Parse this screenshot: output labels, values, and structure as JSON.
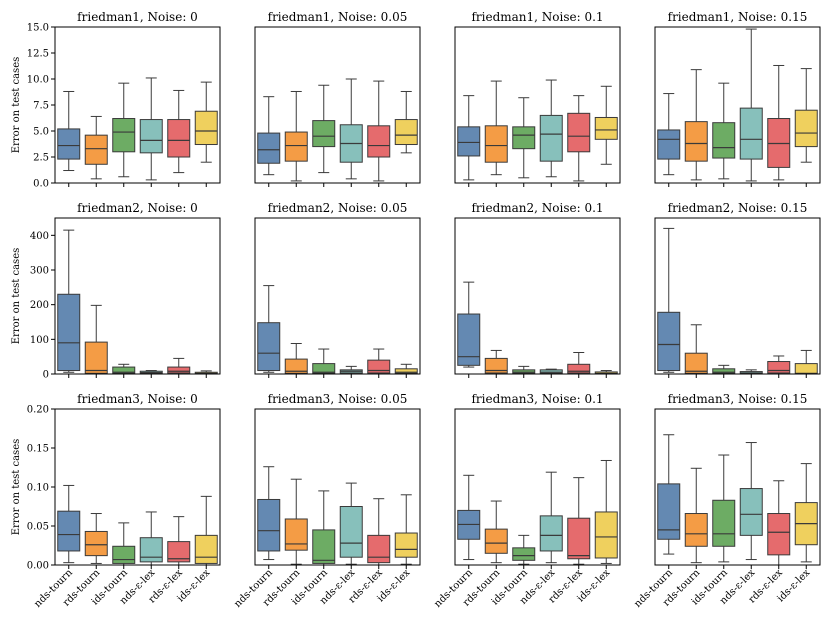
{
  "chart_data": {
    "type": "boxplot",
    "ylabel": "Error on test cases",
    "categories": [
      "nds-tourn",
      "rds-tourn",
      "ids-tourn",
      "nds-ε-lex",
      "rds-ε-lex",
      "ids-ε-lex"
    ],
    "colors": [
      "#4e79a7",
      "#f28e2b",
      "#59a14f",
      "#76b7b2",
      "#e15759",
      "#edc948"
    ],
    "rows": [
      {
        "dataset": "friedman1",
        "ylim": [
          0,
          15
        ],
        "yticks": [
          0,
          2.5,
          5,
          7.5,
          10,
          12.5,
          15
        ],
        "yticklabels": [
          "0.0",
          "2.5",
          "5.0",
          "7.5",
          "10.0",
          "12.5",
          "15.0"
        ],
        "panels": [
          {
            "title": "friedman1, Noise: 0",
            "boxes": [
              [
                1.2,
                2.3,
                3.6,
                5.2,
                8.8
              ],
              [
                0.4,
                1.8,
                3.3,
                4.6,
                6.4
              ],
              [
                0.6,
                3.0,
                4.9,
                6.2,
                9.6
              ],
              [
                0.3,
                2.9,
                4.1,
                6.1,
                10.1
              ],
              [
                1.0,
                2.5,
                4.1,
                6.1,
                8.9
              ],
              [
                2.0,
                3.7,
                5.0,
                6.9,
                9.7
              ]
            ]
          },
          {
            "title": "friedman1, Noise: 0.05",
            "boxes": [
              [
                0.8,
                1.9,
                3.2,
                4.8,
                8.3
              ],
              [
                0.2,
                2.1,
                3.6,
                4.9,
                8.8
              ],
              [
                1.0,
                3.5,
                4.5,
                6.0,
                9.4
              ],
              [
                0.4,
                2.0,
                3.8,
                5.6,
                10.0
              ],
              [
                0.2,
                2.5,
                3.6,
                5.5,
                9.8
              ],
              [
                2.9,
                3.7,
                4.6,
                6.1,
                8.8
              ]
            ]
          },
          {
            "title": "friedman1, Noise: 0.1",
            "boxes": [
              [
                0.3,
                2.6,
                3.9,
                5.4,
                8.4
              ],
              [
                0.8,
                2.0,
                3.6,
                5.5,
                9.8
              ],
              [
                0.5,
                3.3,
                4.6,
                5.4,
                8.2
              ],
              [
                0.6,
                2.1,
                4.7,
                6.5,
                9.9
              ],
              [
                0.2,
                3.0,
                4.5,
                6.7,
                8.4
              ],
              [
                1.8,
                4.2,
                5.1,
                6.3,
                9.3
              ]
            ]
          },
          {
            "title": "friedman1, Noise: 0.15",
            "boxes": [
              [
                0.8,
                2.3,
                4.2,
                5.1,
                8.6
              ],
              [
                0.3,
                2.1,
                3.8,
                5.9,
                10.9
              ],
              [
                0.4,
                2.4,
                3.4,
                5.8,
                9.6
              ],
              [
                0.2,
                2.3,
                4.2,
                7.2,
                14.8
              ],
              [
                0.3,
                1.5,
                3.8,
                6.2,
                11.3
              ],
              [
                2.0,
                3.5,
                4.8,
                7.0,
                11.0
              ]
            ]
          }
        ]
      },
      {
        "dataset": "friedman2",
        "ylim": [
          0,
          450
        ],
        "yticks": [
          0,
          100,
          200,
          300,
          400
        ],
        "yticklabels": [
          "0",
          "100",
          "200",
          "300",
          "400"
        ],
        "panels": [
          {
            "title": "friedman2, Noise: 0",
            "boxes": [
              [
                5,
                10,
                90,
                230,
                415
              ],
              [
                0,
                2,
                10,
                92,
                198
              ],
              [
                0,
                2,
                5,
                20,
                28
              ],
              [
                0,
                2,
                4,
                8,
                10
              ],
              [
                0,
                3,
                8,
                20,
                45
              ],
              [
                0,
                1,
                2,
                5,
                9
              ]
            ]
          },
          {
            "title": "friedman2, Noise: 0.05",
            "boxes": [
              [
                5,
                10,
                60,
                148,
                255
              ],
              [
                0,
                2,
                8,
                43,
                88
              ],
              [
                0,
                2,
                5,
                30,
                72
              ],
              [
                0,
                3,
                8,
                12,
                22
              ],
              [
                0,
                3,
                10,
                40,
                72
              ],
              [
                0,
                2,
                5,
                15,
                28
              ]
            ]
          },
          {
            "title": "friedman2, Noise: 0.1",
            "boxes": [
              [
                20,
                25,
                50,
                173,
                265
              ],
              [
                0,
                3,
                10,
                45,
                68
              ],
              [
                0,
                2,
                5,
                12,
                22
              ],
              [
                0,
                2,
                5,
                12,
                14
              ],
              [
                0,
                3,
                8,
                28,
                62
              ],
              [
                0,
                1,
                2,
                6,
                10
              ]
            ]
          },
          {
            "title": "friedman2, Noise: 0.15",
            "boxes": [
              [
                5,
                10,
                85,
                178,
                420
              ],
              [
                0,
                2,
                8,
                60,
                142
              ],
              [
                0,
                2,
                5,
                15,
                25
              ],
              [
                0,
                2,
                3,
                7,
                12
              ],
              [
                0,
                3,
                10,
                36,
                52
              ],
              [
                0,
                1,
                2,
                30,
                68
              ]
            ]
          }
        ]
      },
      {
        "dataset": "friedman3",
        "ylim": [
          0,
          0.2
        ],
        "yticks": [
          0,
          0.05,
          0.1,
          0.15,
          0.2
        ],
        "yticklabels": [
          "0.00",
          "0.05",
          "0.10",
          "0.15",
          "0.20"
        ],
        "panels": [
          {
            "title": "friedman3, Noise: 0",
            "boxes": [
              [
                0.003,
                0.018,
                0.039,
                0.069,
                0.102
              ],
              [
                0.002,
                0.012,
                0.026,
                0.043,
                0.066
              ],
              [
                0.0,
                0.002,
                0.007,
                0.024,
                0.054
              ],
              [
                0.0,
                0.004,
                0.01,
                0.035,
                0.068
              ],
              [
                0.0,
                0.004,
                0.008,
                0.03,
                0.062
              ],
              [
                0.0,
                0.002,
                0.01,
                0.038,
                0.088
              ]
            ]
          },
          {
            "title": "friedman3, Noise: 0.05",
            "boxes": [
              [
                0.007,
                0.018,
                0.044,
                0.084,
                0.126
              ],
              [
                0.001,
                0.019,
                0.027,
                0.059,
                0.11
              ],
              [
                0.0,
                0.002,
                0.006,
                0.045,
                0.095
              ],
              [
                0.001,
                0.01,
                0.028,
                0.075,
                0.105
              ],
              [
                0.0,
                0.003,
                0.01,
                0.038,
                0.085
              ],
              [
                0.001,
                0.01,
                0.02,
                0.041,
                0.09
              ]
            ]
          },
          {
            "title": "friedman3, Noise: 0.1",
            "boxes": [
              [
                0.007,
                0.033,
                0.052,
                0.07,
                0.115
              ],
              [
                0.003,
                0.015,
                0.028,
                0.046,
                0.082
              ],
              [
                0.001,
                0.006,
                0.012,
                0.022,
                0.038
              ],
              [
                0.003,
                0.018,
                0.038,
                0.063,
                0.119
              ],
              [
                0.001,
                0.008,
                0.012,
                0.06,
                0.112
              ],
              [
                0.002,
                0.009,
                0.036,
                0.068,
                0.134
              ]
            ]
          },
          {
            "title": "friedman3, Noise: 0.15",
            "boxes": [
              [
                0.014,
                0.033,
                0.045,
                0.104,
                0.167
              ],
              [
                0.003,
                0.024,
                0.04,
                0.066,
                0.124
              ],
              [
                0.004,
                0.024,
                0.04,
                0.083,
                0.141
              ],
              [
                0.007,
                0.038,
                0.065,
                0.098,
                0.157
              ],
              [
                0.0,
                0.013,
                0.042,
                0.066,
                0.108
              ],
              [
                0.004,
                0.026,
                0.053,
                0.08,
                0.13
              ]
            ]
          }
        ]
      }
    ]
  }
}
